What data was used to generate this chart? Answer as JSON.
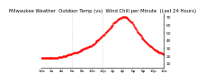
{
  "title": "Milwaukee Weather  Outdoor Temp (vs)  Wind Chill per Minute  (Last 24 Hours)",
  "line_color": "#ff0000",
  "bg_color": "#ffffff",
  "vline_color": "#aaaaaa",
  "y_ticks": [
    10,
    20,
    30,
    40,
    50,
    60,
    70
  ],
  "ylim": [
    5,
    75
  ],
  "xlim": [
    0,
    144
  ],
  "vline_positions": [
    36,
    72
  ],
  "x_values": [
    0,
    1,
    2,
    3,
    4,
    5,
    6,
    7,
    8,
    9,
    10,
    11,
    12,
    13,
    14,
    15,
    16,
    17,
    18,
    19,
    20,
    21,
    22,
    23,
    24,
    25,
    26,
    27,
    28,
    29,
    30,
    31,
    32,
    33,
    34,
    35,
    36,
    37,
    38,
    39,
    40,
    41,
    42,
    43,
    44,
    45,
    46,
    47,
    48,
    49,
    50,
    51,
    52,
    53,
    54,
    55,
    56,
    57,
    58,
    59,
    60,
    61,
    62,
    63,
    64,
    65,
    66,
    67,
    68,
    69,
    70,
    71,
    72,
    73,
    74,
    75,
    76,
    77,
    78,
    79,
    80,
    81,
    82,
    83,
    84,
    85,
    86,
    87,
    88,
    89,
    90,
    91,
    92,
    93,
    94,
    95,
    96,
    97,
    98,
    99,
    100,
    101,
    102,
    103,
    104,
    105,
    106,
    107,
    108,
    109,
    110,
    111,
    112,
    113,
    114,
    115,
    116,
    117,
    118,
    119,
    120,
    121,
    122,
    123,
    124,
    125,
    126,
    127,
    128,
    129,
    130,
    131,
    132,
    133,
    134,
    135,
    136,
    137,
    138,
    139,
    140,
    141,
    142,
    143,
    144
  ],
  "y_values": [
    18,
    18,
    17,
    17,
    17,
    17,
    17,
    17,
    17,
    17,
    17,
    17,
    17,
    17,
    18,
    18,
    18,
    18,
    18,
    18,
    19,
    19,
    19,
    19,
    19,
    20,
    20,
    20,
    20,
    20,
    21,
    21,
    22,
    22,
    22,
    22,
    23,
    23,
    24,
    24,
    24,
    25,
    25,
    26,
    26,
    27,
    27,
    28,
    28,
    29,
    29,
    30,
    30,
    30,
    31,
    31,
    32,
    32,
    33,
    34,
    35,
    35,
    36,
    37,
    38,
    39,
    40,
    41,
    42,
    43,
    44,
    45,
    46,
    47,
    48,
    50,
    51,
    52,
    53,
    54,
    55,
    57,
    58,
    59,
    60,
    62,
    63,
    64,
    65,
    66,
    67,
    68,
    68,
    69,
    69,
    70,
    70,
    70,
    70,
    70,
    69,
    69,
    68,
    67,
    66,
    65,
    64,
    63,
    61,
    59,
    57,
    55,
    53,
    51,
    50,
    49,
    47,
    46,
    44,
    43,
    42,
    40,
    39,
    38,
    37,
    36,
    35,
    34,
    33,
    32,
    31,
    30,
    29,
    28,
    28,
    27,
    27,
    26,
    26,
    25,
    24,
    24,
    23,
    23,
    22
  ],
  "markersize": 1.2,
  "title_fontsize": 3.8,
  "tick_fontsize": 3.2,
  "xlabel_fontsize": 3.0,
  "x_tick_positions": [
    0,
    12,
    24,
    36,
    48,
    60,
    72,
    84,
    96,
    108,
    120,
    132,
    144
  ],
  "x_tick_labels": [
    "12a",
    "2a",
    "4a",
    "6a",
    "8a",
    "10a",
    "12p",
    "2p",
    "4p",
    "6p",
    "8p",
    "10p",
    "12a"
  ]
}
